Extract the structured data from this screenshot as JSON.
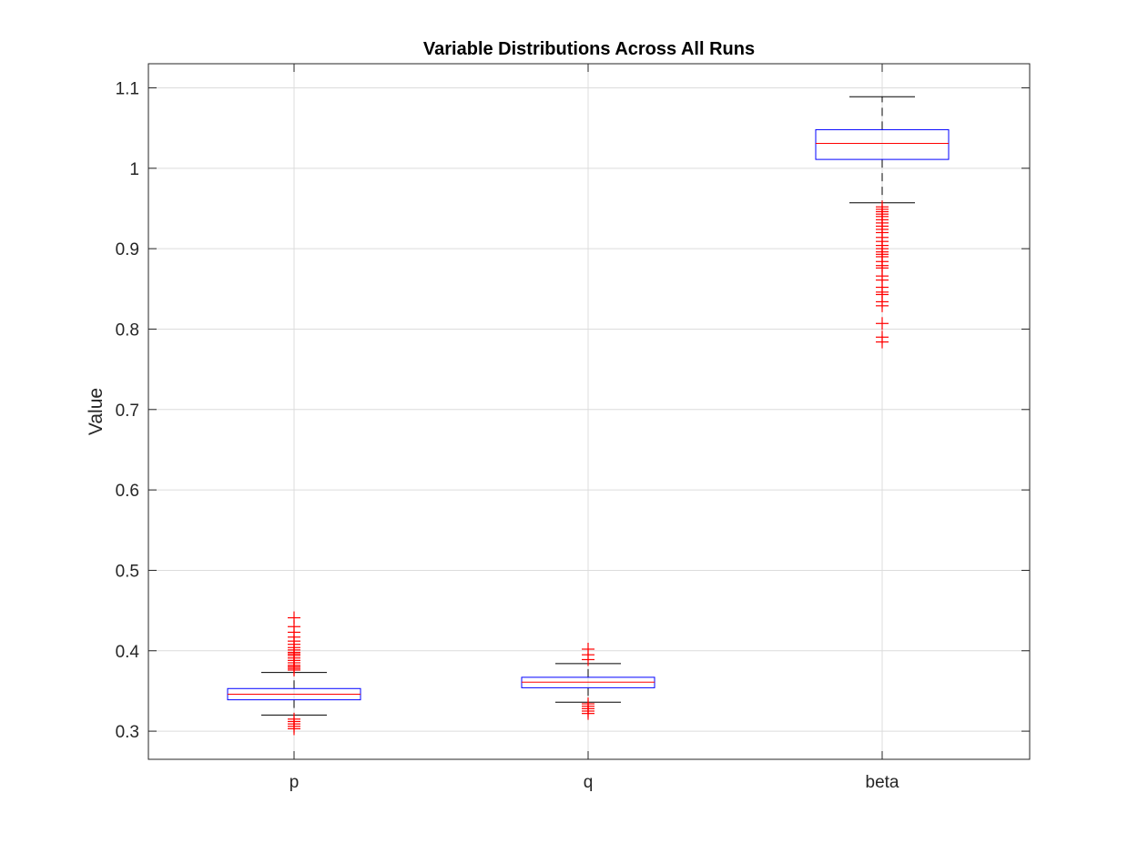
{
  "chart_data": {
    "type": "boxplot",
    "title": "Variable Distributions Across All Runs",
    "xlabel": "",
    "ylabel": "Value",
    "ylim": [
      0.265,
      1.13
    ],
    "yticks": [
      0.3,
      0.4,
      0.5,
      0.6,
      0.7,
      0.8,
      0.9,
      1,
      1.1
    ],
    "ytick_labels": [
      "0.3",
      "0.4",
      "0.5",
      "0.6",
      "0.7",
      "0.8",
      "0.9",
      "1",
      "1.1"
    ],
    "categories": [
      "p",
      "q",
      "beta"
    ],
    "grid": true,
    "box_color": "#0000ff",
    "median_color": "#ff0000",
    "whisker_color": "#000000",
    "outlier_color": "#ff0000",
    "grid_color": "#dcdcdc",
    "boxes": [
      {
        "category": "p",
        "whisker_low": 0.32,
        "q1": 0.339,
        "median": 0.346,
        "q3": 0.353,
        "whisker_high": 0.373,
        "outliers": [
          0.303,
          0.306,
          0.309,
          0.312,
          0.315,
          0.376,
          0.378,
          0.38,
          0.382,
          0.385,
          0.388,
          0.391,
          0.394,
          0.396,
          0.398,
          0.401,
          0.404,
          0.408,
          0.412,
          0.417,
          0.423,
          0.43,
          0.441
        ]
      },
      {
        "category": "q",
        "whisker_low": 0.336,
        "q1": 0.354,
        "median": 0.361,
        "q3": 0.367,
        "whisker_high": 0.384,
        "outliers": [
          0.322,
          0.325,
          0.328,
          0.331,
          0.334,
          0.389,
          0.395,
          0.402
        ]
      },
      {
        "category": "beta",
        "whisker_low": 0.957,
        "q1": 1.011,
        "median": 1.031,
        "q3": 1.048,
        "whisker_high": 1.089,
        "outliers": [
          0.784,
          0.79,
          0.807,
          0.829,
          0.834,
          0.843,
          0.846,
          0.852,
          0.861,
          0.866,
          0.876,
          0.879,
          0.884,
          0.89,
          0.893,
          0.896,
          0.9,
          0.904,
          0.909,
          0.914,
          0.92,
          0.924,
          0.928,
          0.932,
          0.936,
          0.94,
          0.943,
          0.946,
          0.949,
          0.952
        ]
      }
    ]
  }
}
